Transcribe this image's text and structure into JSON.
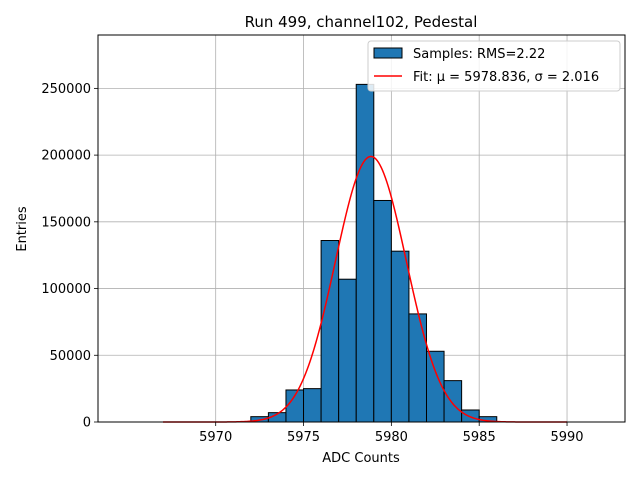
{
  "chart_data": {
    "type": "bar",
    "title": "Run 499, channel102, Pedestal",
    "xlabel": "ADC Counts",
    "ylabel": "Entries",
    "xlim": [
      5963.3,
      5993.3
    ],
    "ylim": [
      0,
      290000
    ],
    "grid": true,
    "legend_position": "top-right",
    "bin_width": 1,
    "xticks": [
      5970,
      5975,
      5980,
      5985,
      5990
    ],
    "yticks": [
      0,
      50000,
      100000,
      150000,
      200000,
      250000
    ],
    "histogram": {
      "name": "Samples: RMS=2.22",
      "color": "#1f77b4",
      "bin_starts": [
        5972,
        5973,
        5974,
        5975,
        5976,
        5977,
        5978,
        5979,
        5980,
        5981,
        5982,
        5983,
        5984,
        5985
      ],
      "values": [
        4000,
        7000,
        24000,
        25000,
        136000,
        107000,
        253000,
        166000,
        128000,
        81000,
        53000,
        31000,
        9000,
        4000
      ]
    },
    "fit": {
      "name": "Fit: μ = 5978.836, σ = 2.016",
      "color": "#ff0000",
      "mu": 5978.836,
      "sigma": 2.016,
      "amplitude": 199000,
      "x_range": [
        5967,
        5990
      ]
    }
  }
}
